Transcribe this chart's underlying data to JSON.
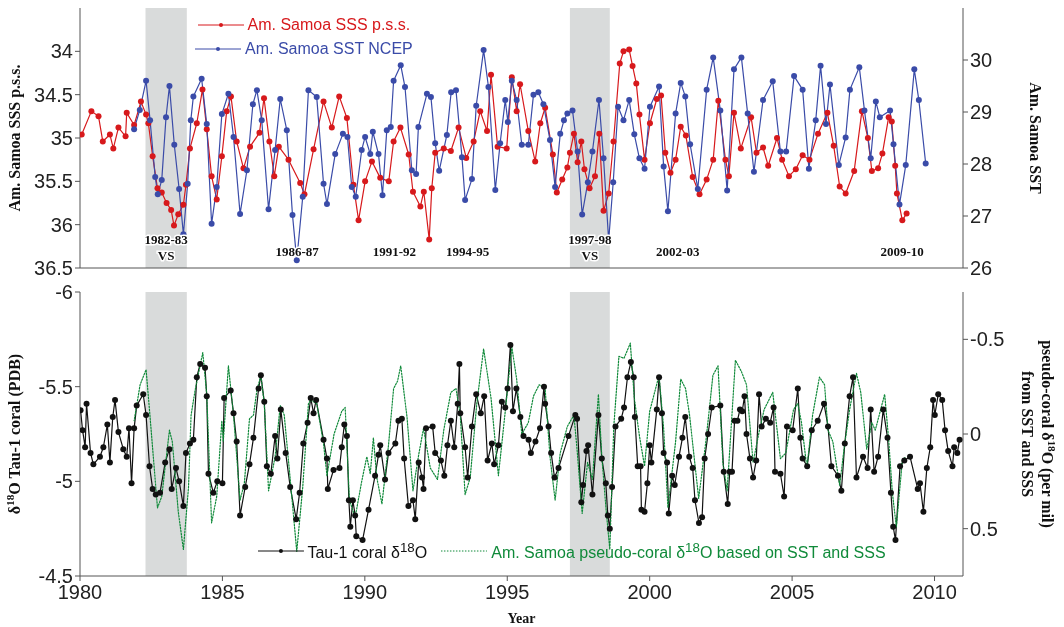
{
  "chart_data": [
    {
      "type": "line",
      "ylabel": "Am. Samoa SSS p.s.s.",
      "y2label": "Am. Samoa SST",
      "xlim": [
        1980,
        2011
      ],
      "xticks": [
        1980,
        1985,
        1990,
        1995,
        2000,
        2005,
        2010
      ],
      "ylim": [
        36.5,
        33.5
      ],
      "yticks": [
        34,
        34.5,
        35,
        35.5,
        36,
        36.5
      ],
      "y2lim": [
        26,
        31
      ],
      "y2ticks": [
        26,
        27,
        28,
        29,
        30
      ],
      "tick_labels": "y",
      "legend": "top left",
      "marker": "circle",
      "bands": [
        {
          "axis": "x",
          "from": 1982.3,
          "to": 1983.75,
          "color": "#d9dbdb",
          "label": "1982-83\nVS"
        },
        {
          "axis": "x",
          "from": 1997.2,
          "to": 1998.6,
          "color": "#d9dbdb",
          "label": "1997-98\nVS"
        }
      ],
      "annotations": [
        "1986-87",
        "1991-92",
        "1994-95",
        "2002-03",
        "2009-10"
      ],
      "series": [
        {
          "name": "Am. Samoa SSS p.s.s.",
          "color": "#d7191c",
          "x": [
            1980.06,
            1980.4,
            1980.65,
            1980.8,
            1981.05,
            1981.17,
            1981.35,
            1981.6,
            1981.64,
            1981.9,
            1982.14,
            1982.32,
            1982.4,
            1982.55,
            1982.72,
            1982.87,
            1983.04,
            1983.2,
            1983.3,
            1983.45,
            1983.63,
            1983.72,
            1983.86,
            1984.1,
            1984.3,
            1984.45,
            1984.62,
            1984.8,
            1984.98,
            1985.15,
            1985.3,
            1985.5,
            1985.74,
            1985.97,
            1986.3,
            1986.46,
            1986.65,
            1986.82,
            1986.98,
            1987.32,
            1987.73,
            1987.88,
            1988.2,
            1988.55,
            1988.84,
            1989.1,
            1989.37,
            1989.6,
            1989.78,
            1990.01,
            1990.25,
            1990.54,
            1990.84,
            1991.01,
            1991.25,
            1991.54,
            1991.69,
            1991.95,
            1992.07,
            1992.26,
            1992.35,
            1992.47,
            1992.77,
            1993.02,
            1993.29,
            1993.56,
            1993.82,
            1994.05,
            1994.29,
            1994.43,
            1994.66,
            1994.98,
            1995.16,
            1995.33,
            1995.45,
            1995.74,
            1995.98,
            1996.16,
            1996.33,
            1996.6,
            1996.74,
            1996.93,
            1997.11,
            1997.2,
            1997.34,
            1997.47,
            1997.6,
            1997.71,
            1997.89,
            1998.08,
            1998.23,
            1998.38,
            1998.56,
            1998.73,
            1998.95,
            1999.08,
            1999.28,
            1999.4,
            1999.53,
            1999.64,
            1999.82,
            2000.01,
            2000.25,
            2000.4,
            2000.55,
            2000.73,
            2000.91,
            2001.09,
            2001.27,
            2001.51,
            2001.75,
            2002.0,
            2002.23,
            2002.41,
            2002.66,
            2002.78,
            2002.96,
            2003.2,
            2003.56,
            2003.75,
            2003.98,
            2004.16,
            2004.47,
            2004.65,
            2004.89,
            2005.13,
            2005.37,
            2005.61,
            2005.91,
            2006.24,
            2006.46,
            2006.67,
            2006.88,
            2007.18,
            2007.45,
            2007.66,
            2007.8,
            2008.02,
            2008.17,
            2008.39,
            2008.5,
            2008.62,
            2008.68,
            2008.87,
            2009.02
          ],
          "values": [
            34.96,
            34.69,
            34.75,
            35.04,
            34.96,
            35.12,
            34.88,
            34.98,
            34.71,
            34.85,
            34.58,
            34.73,
            34.83,
            35.21,
            35.58,
            35.63,
            35.75,
            35.83,
            36.01,
            35.88,
            35.77,
            35.54,
            35.12,
            34.83,
            34.44,
            34.9,
            35.44,
            35.71,
            35.21,
            34.69,
            34.52,
            35.04,
            35.35,
            35.1,
            34.94,
            34.54,
            35.04,
            35.44,
            35.1,
            35.25,
            35.52,
            35.65,
            35.13,
            34.58,
            34.88,
            34.52,
            34.77,
            35.54,
            35.95,
            35.5,
            35.27,
            35.46,
            35.5,
            35.04,
            34.88,
            35.19,
            35.62,
            35.79,
            35.62,
            36.17,
            35.58,
            35.17,
            35.12,
            35.15,
            34.88,
            35.23,
            35.04,
            34.69,
            34.92,
            34.27,
            35.1,
            35.12,
            34.3,
            34.69,
            34.38,
            34.92,
            35.27,
            34.83,
            34.65,
            35.19,
            35.63,
            35.48,
            35.34,
            35.17,
            34.95,
            35.28,
            35.04,
            35.36,
            35.58,
            35.44,
            34.95,
            35.84,
            35.64,
            35.04,
            34.14,
            34.0,
            33.98,
            34.17,
            34.37,
            34.73,
            35.25,
            34.83,
            34.55,
            34.51,
            35.17,
            35.4,
            35.25,
            34.87,
            34.97,
            35.45,
            35.65,
            35.48,
            35.25,
            34.57,
            35.25,
            35.44,
            34.71,
            35.12,
            34.76,
            35.17,
            35.11,
            35.32,
            35.0,
            35.25,
            35.44,
            35.36,
            35.2,
            35.25,
            34.95,
            34.71,
            35.09,
            35.56,
            35.64,
            35.38,
            34.69,
            35.0,
            35.38,
            35.35,
            35.18,
            34.76,
            34.81,
            35.32,
            35.64,
            35.95,
            35.87
          ]
        },
        {
          "name": "Am. Samoa SST NCEP",
          "color": "#3a4ba8",
          "axis": "y2",
          "x": [
            1981.9,
            1982.1,
            1982.32,
            1982.46,
            1982.64,
            1982.73,
            1982.87,
            1983.02,
            1983.14,
            1983.31,
            1983.48,
            1983.63,
            1983.78,
            1983.89,
            1983.98,
            1984.27,
            1984.45,
            1984.62,
            1984.8,
            1984.98,
            1985.21,
            1985.39,
            1985.62,
            1985.86,
            1986.07,
            1986.21,
            1986.38,
            1986.62,
            1986.85,
            1987.03,
            1987.26,
            1987.46,
            1987.61,
            1987.82,
            1988.02,
            1988.31,
            1988.55,
            1988.67,
            1988.96,
            1989.23,
            1989.39,
            1989.54,
            1989.68,
            1989.89,
            1990.01,
            1990.19,
            1990.28,
            1990.48,
            1990.62,
            1990.77,
            1990.91,
            1991.01,
            1991.26,
            1991.41,
            1991.65,
            1991.8,
            1991.88,
            1992.18,
            1992.32,
            1992.47,
            1992.61,
            1992.88,
            1993.03,
            1993.2,
            1993.41,
            1993.52,
            1993.76,
            1993.91,
            1994.17,
            1994.34,
            1994.58,
            1994.75,
            1994.93,
            1995.02,
            1995.16,
            1995.33,
            1995.51,
            1995.74,
            1995.92,
            1996.09,
            1996.27,
            1996.5,
            1996.68,
            1996.86,
            1996.99,
            1997.11,
            1997.29,
            1997.47,
            1997.63,
            1997.83,
            1997.99,
            1998.22,
            1998.38,
            1998.56,
            1998.72,
            1998.89,
            1999.08,
            1999.28,
            1999.46,
            1999.64,
            1999.82,
            2000.01,
            2000.33,
            2000.49,
            2000.64,
            2000.91,
            2001.09,
            2001.25,
            2001.42,
            2001.69,
            2002.0,
            2002.23,
            2002.48,
            2002.72,
            2002.96,
            2003.22,
            2003.44,
            2003.66,
            2003.98,
            2004.32,
            2004.59,
            2004.79,
            2005.07,
            2005.37,
            2005.59,
            2005.83,
            2006.0,
            2006.19,
            2006.33,
            2006.64,
            2006.88,
            2007.03,
            2007.36,
            2007.54,
            2007.76,
            2007.94,
            2008.08,
            2008.44,
            2008.56,
            2008.77,
            2008.99,
            2009.29,
            2009.45,
            2009.69
          ],
          "values": [
            28.67,
            29.04,
            29.6,
            28.84,
            27.75,
            27.42,
            27.69,
            28.9,
            29.5,
            28.37,
            27.52,
            26.65,
            27.62,
            28.84,
            29.3,
            29.64,
            28.77,
            26.85,
            27.56,
            28.96,
            29.35,
            28.52,
            27.04,
            27.88,
            29.15,
            29.42,
            28.84,
            27.13,
            28.27,
            29.25,
            28.65,
            27.02,
            26.15,
            27.37,
            29.42,
            29.29,
            27.62,
            27.23,
            28.19,
            28.58,
            28.52,
            27.56,
            27.37,
            28.27,
            28.52,
            28.19,
            28.62,
            28.19,
            27.4,
            28.65,
            28.71,
            29.6,
            29.9,
            29.48,
            27.88,
            27.81,
            28.71,
            29.35,
            29.29,
            28.4,
            27.87,
            28.56,
            29.38,
            29.42,
            28.13,
            27.31,
            27.71,
            29.12,
            30.19,
            29.48,
            27.5,
            28.4,
            29.23,
            28.81,
            29.6,
            29.23,
            28.37,
            28.37,
            29.33,
            29.38,
            29.15,
            28.46,
            27.56,
            28.58,
            28.84,
            28.97,
            29.03,
            28.24,
            27.03,
            27.65,
            28.24,
            29.23,
            28.11,
            26.53,
            27.65,
            29.1,
            28.84,
            29.23,
            28.57,
            28.11,
            27.91,
            29.1,
            29.49,
            27.95,
            27.09,
            28.97,
            29.56,
            29.3,
            28.38,
            27.52,
            29.43,
            30.05,
            29.03,
            27.49,
            29.82,
            30.05,
            28.97,
            27.85,
            29.23,
            29.59,
            28.24,
            28.24,
            29.69,
            29.43,
            27.91,
            28.84,
            29.89,
            28.77,
            29.53,
            27.98,
            28.51,
            29.43,
            29.86,
            29.03,
            28.11,
            29.2,
            28.9,
            29.03,
            28.38,
            27.22,
            27.98,
            29.82,
            29.23,
            28.01
          ]
        }
      ]
    },
    {
      "type": "line",
      "xlabel": "Year",
      "ylabel": "δ$^{18}$O Tau-1 coral (PDB)",
      "y2label": "pseudo-coral δ$^{18}$O (per mil)\nfrom SST and SSS",
      "xlim": [
        1980,
        2011
      ],
      "xticks": [
        1980,
        1985,
        1990,
        1995,
        2000,
        2005,
        2010
      ],
      "ylim": [
        -4.5,
        -6
      ],
      "yticks": [
        -6,
        -5.5,
        -5,
        -4.5
      ],
      "y2lim": [
        0.75,
        -0.75
      ],
      "y2ticks": [
        -0.5,
        0,
        0.5
      ],
      "legend": "bottom",
      "marker": "circle",
      "bands": [
        {
          "axis": "x",
          "from": 1982.3,
          "to": 1983.75,
          "color": "#d9dbdb"
        },
        {
          "axis": "x",
          "from": 1997.2,
          "to": 1998.6,
          "color": "#d9dbdb"
        }
      ],
      "series": [
        {
          "name": "Tau-1 coral δ$^{18}$O",
          "color": "#111111",
          "x": [
            1980.02,
            1980.09,
            1980.18,
            1980.23,
            1980.37,
            1980.47,
            1980.7,
            1980.82,
            1980.96,
            1981.05,
            1981.15,
            1981.23,
            1981.35,
            1981.52,
            1981.64,
            1981.72,
            1981.81,
            1981.9,
            1981.99,
            1982.22,
            1982.32,
            1982.44,
            1982.55,
            1982.66,
            1982.81,
            1982.99,
            1983.14,
            1983.22,
            1983.37,
            1983.48,
            1983.63,
            1983.72,
            1983.86,
            1983.98,
            1984.1,
            1984.22,
            1984.39,
            1984.45,
            1984.51,
            1984.68,
            1984.82,
            1985.0,
            1985.06,
            1985.29,
            1985.39,
            1985.5,
            1985.62,
            1985.8,
            1985.95,
            1986.09,
            1986.27,
            1986.35,
            1986.47,
            1986.56,
            1986.7,
            1986.85,
            1986.93,
            1987.05,
            1987.22,
            1987.38,
            1987.59,
            1987.71,
            1987.84,
            1987.99,
            1988.1,
            1988.2,
            1988.29,
            1988.55,
            1988.67,
            1988.7,
            1988.9,
            1989.11,
            1989.19,
            1989.28,
            1989.37,
            1989.44,
            1989.49,
            1989.58,
            1989.66,
            1989.7,
            1989.92,
            1990.13,
            1990.36,
            1990.48,
            1990.54,
            1990.71,
            1990.83,
            1991.07,
            1991.18,
            1991.3,
            1991.38,
            1991.53,
            1991.69,
            1991.77,
            1991.89,
            1992.01,
            1992.06,
            1992.15,
            1992.38,
            1992.47,
            1992.67,
            1992.79,
            1992.9,
            1993.02,
            1993.14,
            1993.26,
            1993.32,
            1993.35,
            1993.52,
            1993.61,
            1993.76,
            1993.91,
            1994.07,
            1994.19,
            1994.31,
            1994.46,
            1994.54,
            1994.69,
            1994.81,
            1994.93,
            1995.01,
            1995.11,
            1995.2,
            1995.32,
            1995.46,
            1995.57,
            1995.75,
            1995.83,
            1995.99,
            1996.15,
            1996.29,
            1996.33,
            1996.45,
            1996.54,
            1996.66,
            1996.8,
            1997.15,
            1997.39,
            1997.45,
            1997.6,
            1997.66,
            1997.78,
            1997.84,
            1997.99,
            1998.2,
            1998.32,
            1998.46,
            1998.53,
            1998.6,
            1998.68,
            1998.8,
            1999.0,
            1999.1,
            1999.22,
            1999.34,
            1999.44,
            1999.48,
            1999.58,
            1999.68,
            1999.71,
            1999.82,
            1999.92,
            2000.0,
            2000.06,
            2000.25,
            2000.33,
            2000.43,
            2000.49,
            2000.61,
            2000.67,
            2000.79,
            2000.88,
            2001.03,
            2001.15,
            2001.25,
            2001.39,
            2001.51,
            2001.59,
            2001.73,
            2001.84,
            2001.93,
            2002.05,
            2002.18,
            2002.48,
            2002.6,
            2002.74,
            2002.81,
            2002.89,
            2002.98,
            2003.08,
            2003.17,
            2003.25,
            2003.33,
            2003.4,
            2003.52,
            2003.63,
            2003.74,
            2003.84,
            2003.93,
            2004.08,
            2004.23,
            2004.35,
            2004.4,
            2004.59,
            2004.72,
            2004.82,
            2005.02,
            2005.2,
            2005.29,
            2005.37,
            2005.53,
            2005.69,
            2005.9,
            2006.12,
            2006.26,
            2006.38,
            2006.61,
            2006.73,
            2006.85,
            2007.02,
            2007.14,
            2007.26,
            2007.49,
            2007.65,
            2007.76,
            2007.88,
            2008.02,
            2008.2,
            2008.35,
            2008.47,
            2008.55,
            2008.63,
            2008.79,
            2008.94,
            2009.14,
            2009.41,
            2009.49,
            2009.61,
            2009.73,
            2009.85,
            2009.95,
            2010.01,
            2010.13,
            2010.27,
            2010.37,
            2010.48,
            2010.63,
            2010.69,
            2010.8,
            2010.88
          ],
          "values": [
            -5.375,
            -5.27,
            -5.18,
            -5.41,
            -5.15,
            -5.09,
            -5.13,
            -5.18,
            -5.3,
            -5.1,
            -5.34,
            -5.43,
            -5.26,
            -5.17,
            -5.13,
            -5.28,
            -4.99,
            -5.28,
            -5.4,
            -5.46,
            -5.35,
            -5.08,
            -4.96,
            -4.93,
            -4.94,
            -5.1,
            -5.17,
            -4.96,
            -5.07,
            -5.0,
            -4.87,
            -5.15,
            -5.2,
            -5.22,
            -5.55,
            -5.62,
            -5.6,
            -5.45,
            -5.04,
            -4.94,
            -5.0,
            -4.99,
            -5.44,
            -5.48,
            -5.36,
            -5.21,
            -4.82,
            -4.97,
            -5.09,
            -5.23,
            -5.49,
            -5.56,
            -5.42,
            -5.08,
            -5.04,
            -5.24,
            -5.12,
            -5.38,
            -5.15,
            -4.97,
            -4.8,
            -4.94,
            -5.2,
            -5.31,
            -5.44,
            -5.36,
            -5.43,
            -5.22,
            -5.12,
            -4.96,
            -5.06,
            -5.07,
            -5.18,
            -5.3,
            -5.24,
            -4.9,
            -4.76,
            -4.9,
            -4.82,
            -4.71,
            -4.69,
            -4.85,
            -5.03,
            -5.14,
            -5.19,
            -5.01,
            -5.15,
            -5.2,
            -5.32,
            -5.33,
            -5.12,
            -4.87,
            -4.9,
            -4.8,
            -5.1,
            -5.02,
            -4.96,
            -5.28,
            -5.29,
            -5.15,
            -5.11,
            -5.03,
            -5.19,
            -5.32,
            -5.18,
            -5.41,
            -5.62,
            -5.36,
            -5.18,
            -5.02,
            -5.29,
            -5.46,
            -5.36,
            -5.45,
            -5.11,
            -5.2,
            -5.09,
            -5.19,
            -5.42,
            -5.39,
            -5.49,
            -5.72,
            -5.37,
            -5.49,
            -5.34,
            -5.24,
            -5.22,
            -5.15,
            -5.21,
            -5.28,
            -5.5,
            -5.41,
            -5.29,
            -5.15,
            -5.02,
            -5.07,
            -5.24,
            -5.35,
            -5.33,
            -4.89,
            -4.98,
            -5.16,
            -5.19,
            -4.93,
            -5.35,
            -5.12,
            -4.99,
            -4.82,
            -4.75,
            -4.97,
            -5.29,
            -5.33,
            -5.39,
            -5.55,
            -5.63,
            -5.55,
            -5.34,
            -5.08,
            -5.08,
            -4.85,
            -4.84,
            -4.99,
            -5.19,
            -5.1,
            -5.38,
            -5.55,
            -5.36,
            -5.15,
            -5.1,
            -4.83,
            -5.03,
            -4.98,
            -5.13,
            -5.23,
            -5.34,
            -5.13,
            -5.07,
            -4.9,
            -4.78,
            -4.81,
            -5.12,
            -5.25,
            -5.39,
            -5.4,
            -5.05,
            -4.88,
            -5.05,
            -5.05,
            -5.32,
            -5.32,
            -5.38,
            -5.37,
            -5.45,
            -5.25,
            -5.12,
            -5.02,
            -5.11,
            -5.46,
            -5.29,
            -5.33,
            -5.31,
            -5.39,
            -5.05,
            -5.04,
            -4.92,
            -5.29,
            -5.27,
            -5.49,
            -5.23,
            -5.12,
            -5.08,
            -5.27,
            -5.32,
            -5.41,
            -5.29,
            -5.08,
            -5.03,
            -4.95,
            -5.2,
            -5.45,
            -5.55,
            -5.02,
            -5.13,
            -5.07,
            -5.38,
            -5.05,
            -5.13,
            -5.38,
            -5.23,
            -4.94,
            -4.76,
            -4.69,
            -5.08,
            -5.11,
            -5.13,
            -4.96,
            -4.99,
            -4.84,
            -5.07,
            -5.18,
            -5.43,
            -5.35,
            -5.46,
            -5.43,
            -5.27,
            -5.16,
            -5.08,
            -5.18,
            -5.15,
            -5.22
          ]
        },
        {
          "name": "Am. Samoa pseudo-coral δ$^{18}$O based on SST and SSS",
          "color": "#108a3a",
          "axis": "y2",
          "marker": "none",
          "line_style": "dotted",
          "x": [
            1981.9,
            1982.11,
            1982.32,
            1982.46,
            1982.72,
            1982.87,
            1983.14,
            1983.24,
            1983.45,
            1983.63,
            1983.81,
            1983.9,
            1984.04,
            1984.31,
            1984.45,
            1984.62,
            1984.8,
            1984.98,
            1985.03,
            1985.21,
            1985.39,
            1985.62,
            1985.77,
            1985.95,
            1986.09,
            1986.21,
            1986.35,
            1986.47,
            1986.62,
            1986.85,
            1987.03,
            1987.17,
            1987.35,
            1987.61,
            1987.82,
            1988.02,
            1988.1,
            1988.31,
            1988.55,
            1988.67,
            1988.92,
            1989.19,
            1989.31,
            1989.46,
            1989.66,
            1989.89,
            1990.07,
            1990.19,
            1990.3,
            1990.42,
            1990.6,
            1990.83,
            1991.01,
            1991.15,
            1991.26,
            1991.48,
            1991.69,
            1991.89,
            1992.06,
            1992.3,
            1992.55,
            1992.77,
            1993.02,
            1993.2,
            1993.35,
            1993.52,
            1993.7,
            1993.93,
            1994.17,
            1994.43,
            1994.69,
            1994.93,
            1995.16,
            1995.33,
            1995.51,
            1995.74,
            1995.92,
            1996.12,
            1996.33,
            1996.5,
            1996.68,
            1996.86,
            1997.11,
            1997.34,
            1997.45,
            1997.63,
            1997.82,
            1997.99,
            1998.2,
            1998.32,
            1998.47,
            1998.6,
            1998.74,
            1998.92,
            1999.1,
            1999.32,
            1999.46,
            1999.64,
            1999.82,
            2000.0,
            2000.33,
            2000.49,
            2000.64,
            2000.91,
            2001.09,
            2001.26,
            2001.4,
            2001.72,
            2001.98,
            2002.22,
            2002.4,
            2002.57,
            2002.72,
            2003.01,
            2003.22,
            2003.4,
            2003.63,
            2003.84,
            2004.02,
            2004.32,
            2004.59,
            2004.78,
            2005.05,
            2005.2,
            2005.33,
            2005.52,
            2005.72,
            2005.96,
            2006.14,
            2006.26,
            2006.43,
            2006.67,
            2006.84,
            2007.02,
            2007.26,
            2007.41,
            2007.62,
            2007.8,
            2007.92,
            2008.25,
            2008.39,
            2008.52,
            2008.66,
            2008.87,
            2008.99
          ],
          "values": [
            -0.07,
            -0.26,
            -0.34,
            -0.09,
            0.39,
            0.33,
            -0.02,
            0.04,
            0.41,
            0.61,
            0.28,
            -0.1,
            -0.23,
            -0.43,
            -0.21,
            0.47,
            0.33,
            -0.07,
            0.04,
            -0.36,
            -0.1,
            0.35,
            0.26,
            -0.08,
            -0.1,
            -0.23,
            -0.31,
            -0.16,
            0.3,
            0.12,
            -0.15,
            -0.1,
            0.19,
            0.62,
            0.28,
            -0.16,
            -0.18,
            -0.16,
            0.05,
            0.22,
            0.0,
            -0.12,
            -0.14,
            0.35,
            0.44,
            0.25,
            0.12,
            0.21,
            0.02,
            0.23,
            0.37,
            0.06,
            -0.24,
            -0.28,
            -0.36,
            -0.09,
            0.3,
            0.11,
            -0.03,
            0.18,
            0.24,
            -0.02,
            -0.22,
            -0.24,
            -0.1,
            0.32,
            0.23,
            -0.16,
            -0.45,
            -0.19,
            0.22,
            -0.12,
            -0.46,
            -0.29,
            0.0,
            -0.06,
            -0.2,
            -0.26,
            -0.24,
            0.12,
            0.35,
            0.1,
            -0.04,
            -0.1,
            0.08,
            0.42,
            0.15,
            0.24,
            -0.21,
            0.12,
            0.4,
            0.61,
            -0.04,
            -0.41,
            -0.4,
            -0.48,
            -0.19,
            0.01,
            0.17,
            -0.12,
            -0.31,
            -0.03,
            0.39,
            0.04,
            -0.29,
            -0.24,
            -0.1,
            0.34,
            0.03,
            -0.31,
            -0.36,
            0.15,
            0.3,
            -0.39,
            -0.33,
            -0.26,
            0.15,
            -0.01,
            -0.13,
            -0.22,
            0.13,
            0.1,
            -0.13,
            -0.16,
            -0.06,
            0.18,
            -0.1,
            -0.3,
            -0.26,
            -0.02,
            0.04,
            0.27,
            0.06,
            -0.13,
            -0.32,
            -0.22,
            0.08,
            -0.06,
            -0.02,
            -0.21,
            0.03,
            0.31,
            0.49,
            0.14,
            0.12
          ]
        }
      ]
    }
  ]
}
